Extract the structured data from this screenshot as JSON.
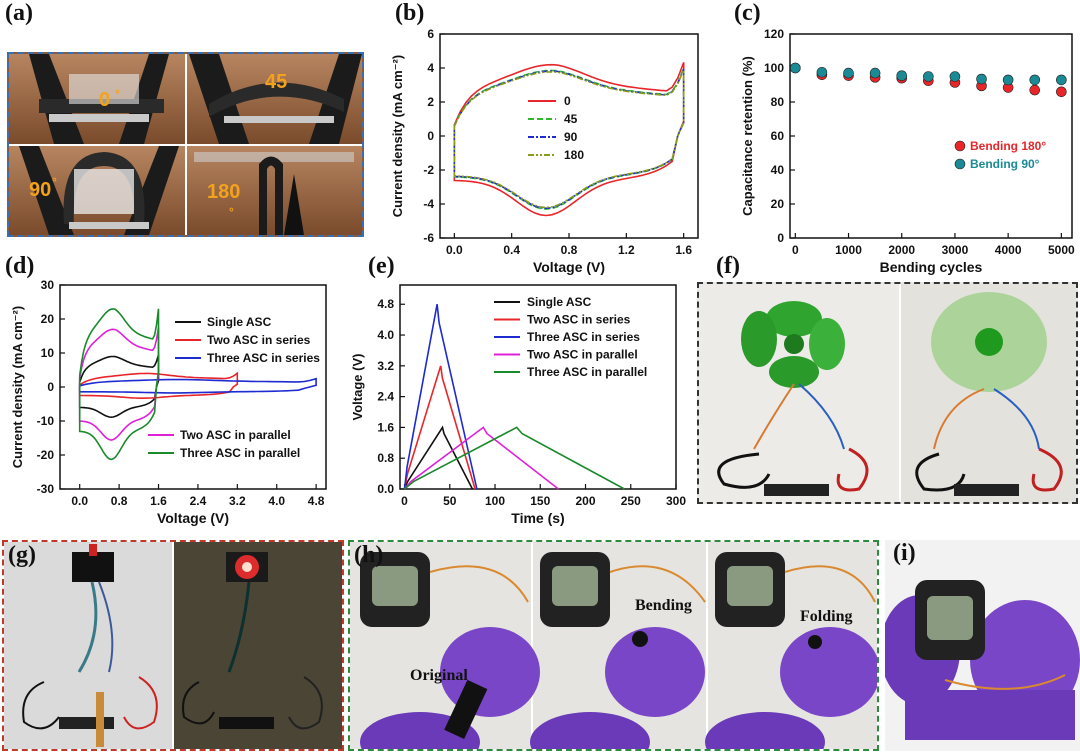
{
  "labels": {
    "a": "(a)",
    "b": "(b)",
    "c": "(c)",
    "d": "(d)",
    "e": "(e)",
    "f": "(f)",
    "g": "(g)",
    "h": "(h)",
    "i": "(i)"
  },
  "photo_a": {
    "angles": [
      "0",
      "45",
      "90",
      "180"
    ],
    "degree_symbol": "°"
  },
  "photo_h": {
    "captions": [
      "Original",
      "Bending",
      "Folding"
    ]
  },
  "chart_data": [
    {
      "id": "b",
      "type": "line",
      "xlabel": "Voltage (V)",
      "ylabel": "Current density (mA cm⁻²)",
      "xlim": [
        -0.1,
        1.7
      ],
      "ylim": [
        -6,
        6
      ],
      "xticks": [
        "0.0",
        "0.4",
        "0.8",
        "1.2",
        "1.6"
      ],
      "yticks": [
        "-6",
        "-4",
        "-2",
        "0",
        "2",
        "4",
        "6"
      ],
      "legend": [
        "0",
        "45",
        "90",
        "180"
      ],
      "colors": [
        "#e8262a",
        "#2eb82e",
        "#1d2bd1",
        "#8a9a1a"
      ],
      "legend_position": "center"
    },
    {
      "id": "c",
      "type": "scatter",
      "xlabel": "Bending cycles",
      "ylabel": "Capacitance retention (%)",
      "xlim": [
        -100,
        5200
      ],
      "ylim": [
        0,
        120
      ],
      "xticks": [
        "0",
        "1000",
        "2000",
        "3000",
        "4000",
        "5000"
      ],
      "yticks": [
        "0",
        "20",
        "40",
        "60",
        "80",
        "100",
        "120"
      ],
      "series": [
        {
          "name": "Bending 180°",
          "color": "#e8262a",
          "x": [
            0,
            500,
            1000,
            1500,
            2000,
            2500,
            3000,
            3500,
            4000,
            4500,
            5000
          ],
          "values": [
            100,
            96,
            95.5,
            94.5,
            94,
            92.5,
            91.5,
            89.5,
            88.5,
            87,
            86
          ]
        },
        {
          "name": "Bending 90°",
          "color": "#1a8a95",
          "x": [
            0,
            500,
            1000,
            1500,
            2000,
            2500,
            3000,
            3500,
            4000,
            4500,
            5000
          ],
          "values": [
            100,
            97.5,
            97,
            97,
            95.5,
            95,
            95,
            93.5,
            93,
            93,
            93
          ]
        }
      ],
      "legend_position": "center-right"
    },
    {
      "id": "d",
      "type": "line",
      "xlabel": "Voltage (V)",
      "ylabel": "Current density (mA cm⁻²)",
      "xlim": [
        -0.4,
        5.0
      ],
      "ylim": [
        -30,
        30
      ],
      "xticks": [
        "0.0",
        "0.8",
        "1.6",
        "2.4",
        "3.2",
        "4.0",
        "4.8"
      ],
      "yticks": [
        "-30",
        "-20",
        "-10",
        "0",
        "10",
        "20",
        "30"
      ],
      "legend": [
        "Single ASC",
        "Two ASC in series",
        "Three ASC in series",
        "Two ASC in parallel",
        "Three ASC in parallel"
      ],
      "colors": [
        "#111111",
        "#e8262a",
        "#1d2bd1",
        "#e020d8",
        "#1a8a2a"
      ]
    },
    {
      "id": "e",
      "type": "line",
      "xlabel": "Time (s)",
      "ylabel": "Voltage (V)",
      "xlim": [
        -5,
        300
      ],
      "ylim": [
        0,
        5.3
      ],
      "xticks": [
        "0",
        "50",
        "100",
        "150",
        "200",
        "250",
        "300"
      ],
      "yticks": [
        "0.0",
        "0.8",
        "1.6",
        "2.4",
        "3.2",
        "4.0",
        "4.8"
      ],
      "legend": [
        "Single ASC",
        "Two ASC in series",
        "Three ASC in series",
        "Two ASC in parallel",
        "Three ASC in parallel"
      ],
      "colors": [
        "#111111",
        "#e8262a",
        "#1d2bd1",
        "#e020d8",
        "#1a8a2a"
      ],
      "series": [
        {
          "name": "Single ASC",
          "peak_time": 42,
          "end_time": 75,
          "vmax": 1.6
        },
        {
          "name": "Two ASC in series",
          "peak_time": 40,
          "end_time": 78,
          "vmax": 3.2
        },
        {
          "name": "Three ASC in series",
          "peak_time": 36,
          "end_time": 80,
          "vmax": 4.8
        },
        {
          "name": "Two ASC in parallel",
          "peak_time": 87,
          "end_time": 170,
          "vmax": 1.6
        },
        {
          "name": "Three ASC in parallel",
          "peak_time": 124,
          "end_time": 243,
          "vmax": 1.6
        }
      ]
    }
  ]
}
